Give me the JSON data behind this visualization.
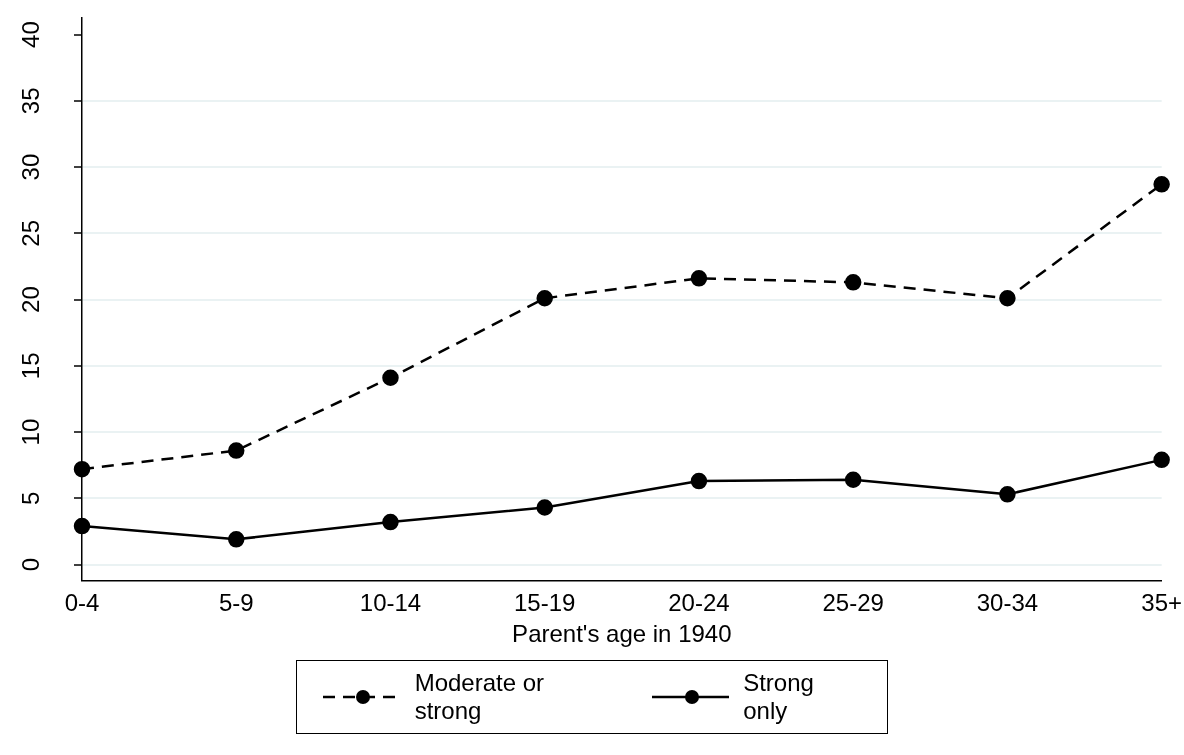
{
  "chart_data": {
    "type": "line",
    "xlabel": "Parent's age in 1940",
    "categories": [
      "0-4",
      "5-9",
      "10-14",
      "15-19",
      "20-24",
      "25-29",
      "30-34",
      "35+"
    ],
    "series": [
      {
        "name": "Moderate or strong",
        "color": "#000000",
        "line_style": "dashed",
        "values": [
          7.2,
          8.6,
          14.1,
          20.1,
          21.6,
          21.3,
          20.1,
          28.7
        ]
      },
      {
        "name": "Strong only",
        "color": "#000000",
        "line_style": "solid",
        "values": [
          2.9,
          1.9,
          3.2,
          4.3,
          6.3,
          6.4,
          5.3,
          7.9
        ]
      }
    ],
    "ylim": [
      -1.2,
      41.3
    ],
    "yticks": [
      0,
      5,
      10,
      15,
      20,
      25,
      30,
      35,
      40
    ],
    "grid": "y",
    "legend": "bottom",
    "marker": "circle"
  }
}
